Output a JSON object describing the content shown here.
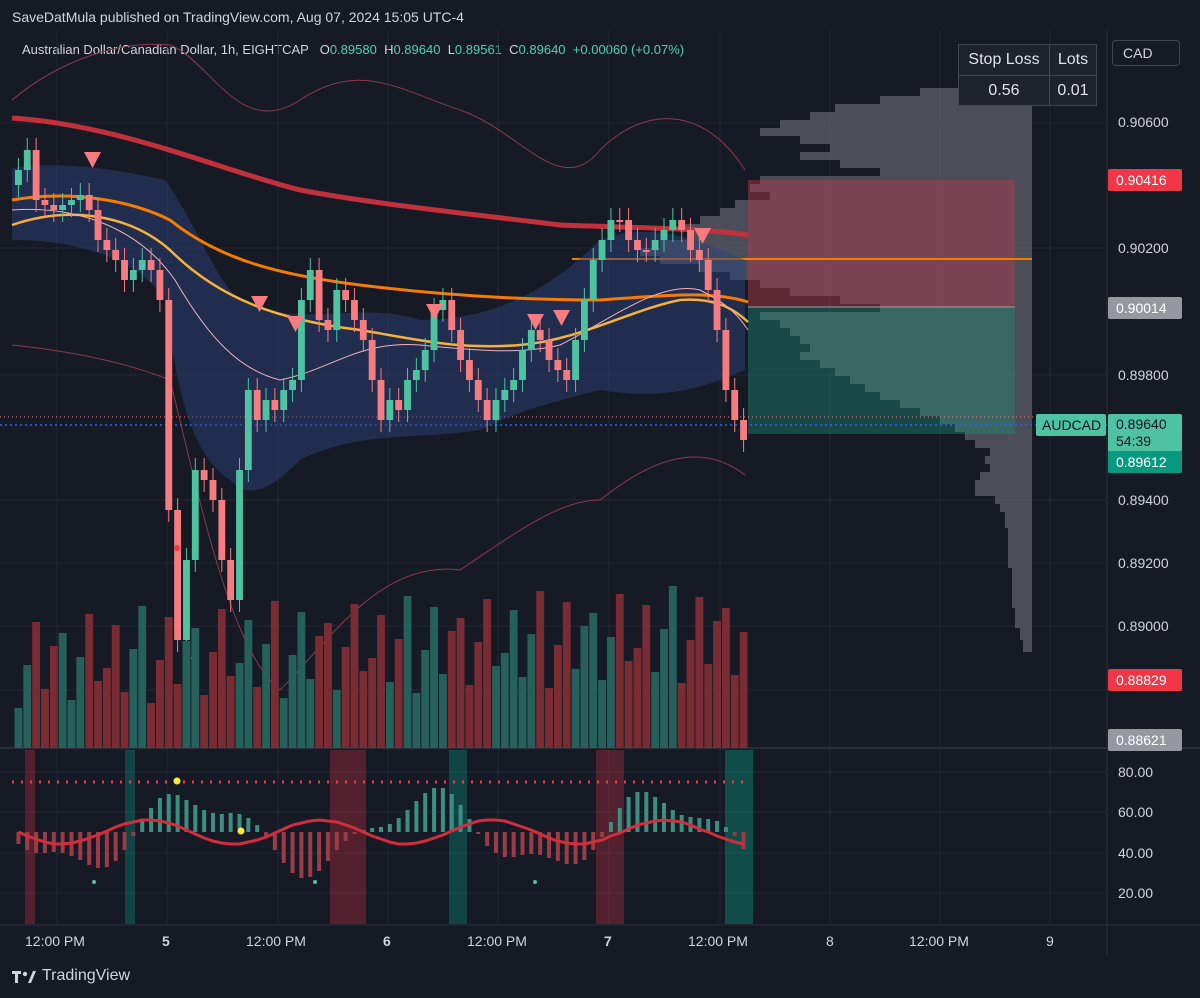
{
  "header": {
    "published": "SaveDatMula published on TradingView.com, Aug 07, 2024 15:05 UTC-4",
    "symbol_desc": "Australian Dollar/Canadian Dollar, 1h, EIGHTCAP",
    "o_label": "O",
    "o_value": "0.89580",
    "h_label": "H",
    "h_value": "0.89640",
    "l_label": "L",
    "l_value": "0.89561",
    "c_label": "C",
    "c_value": "0.89640",
    "change": "+0.00060 (+0.07%)"
  },
  "currency_button": "CAD",
  "risk_table": {
    "stop_loss_header": "Stop Loss",
    "lots_header": "Lots",
    "stop_loss_value": "0.56",
    "lots_value": "0.01"
  },
  "price_axis": {
    "ticks": [
      "0.90600",
      "0.90200",
      "0.89800",
      "0.89400",
      "0.89200",
      "0.89000"
    ],
    "tags": {
      "stop_price": "0.90416",
      "entry_price": "0.90014",
      "symbol": "AUDCAD",
      "last_price": "0.89640",
      "countdown": "54:39",
      "bid_price": "0.89612",
      "low_tag": "0.88829",
      "lower_tag": "0.88621"
    }
  },
  "oscillator_axis": {
    "ticks": [
      "80.00",
      "60.00",
      "40.00",
      "20.00"
    ]
  },
  "time_axis": {
    "labels": [
      "12:00 PM",
      "5",
      "12:00 PM",
      "6",
      "12:00 PM",
      "7",
      "12:00 PM",
      "8",
      "12:00 PM",
      "9"
    ]
  },
  "footer": {
    "brand": "TradingView"
  },
  "colors": {
    "background": "#161a25",
    "bull": "#4fc3a1",
    "bear": "#f77c80",
    "ma_200": "#c2303c",
    "ema_orange": "#f57c00",
    "ema_yellow": "#f6b13a",
    "red_tag": "#f23645",
    "teal_tag": "#089981"
  }
}
